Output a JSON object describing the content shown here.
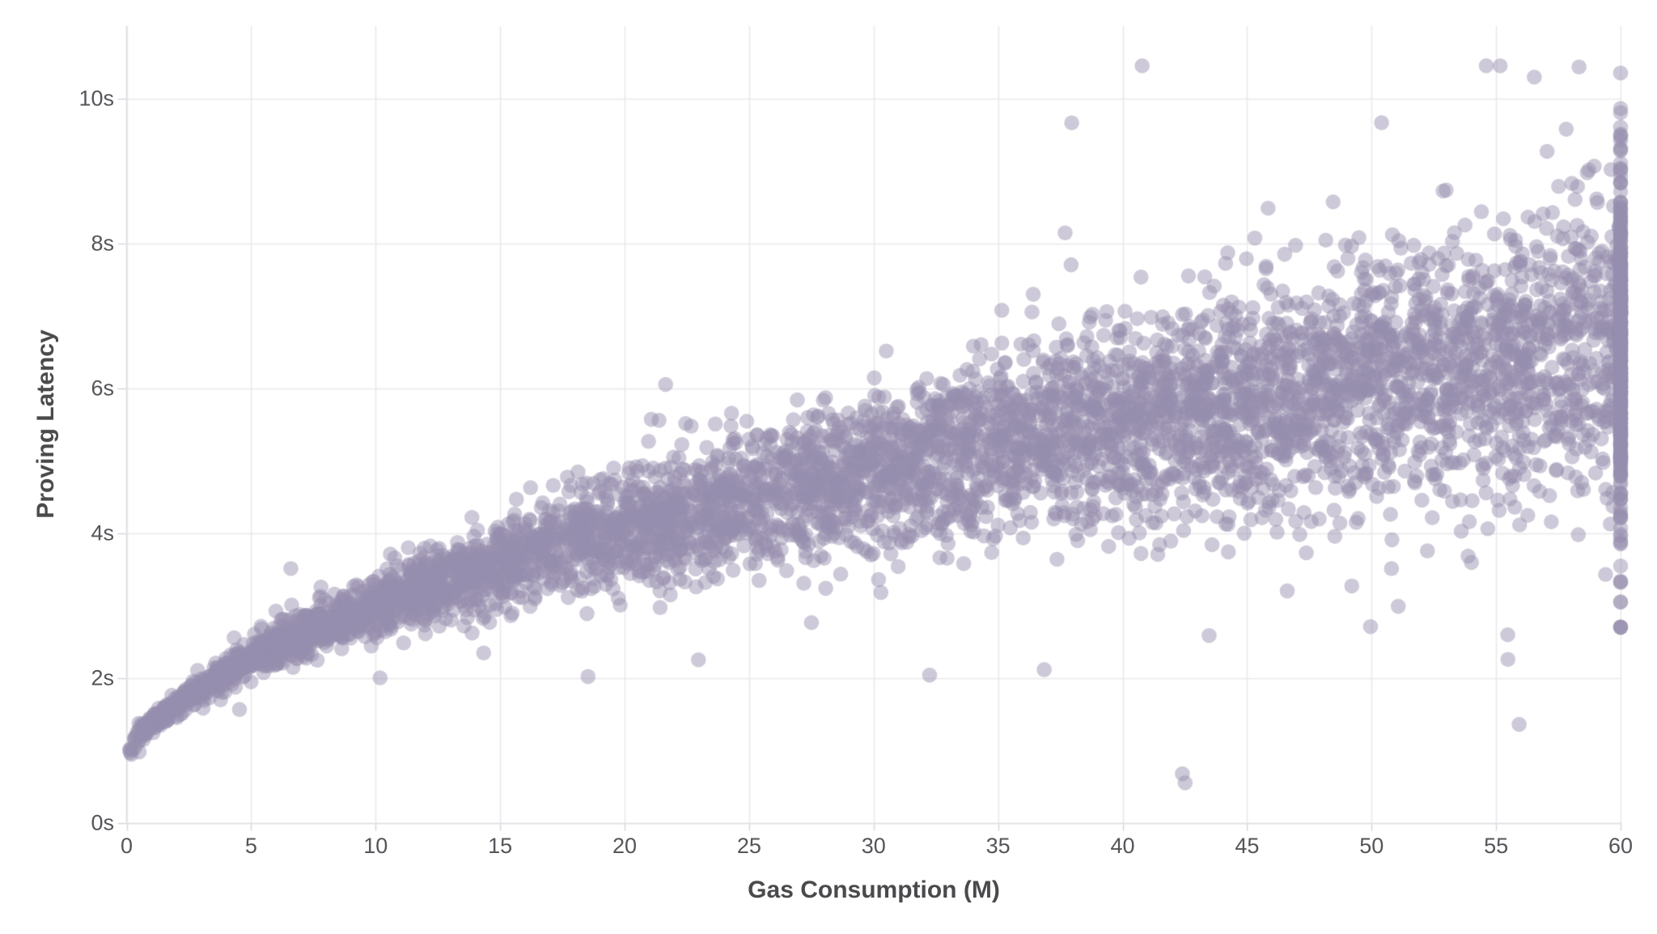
{
  "chart_data": {
    "type": "scatter",
    "title": "",
    "xlabel": "Gas Consumption (M)",
    "ylabel": "Proving Latency",
    "xlim": [
      0,
      60
    ],
    "ylim": [
      0,
      11
    ],
    "grid": true,
    "legend": "none",
    "x_ticks": [
      {
        "value": 0,
        "label": "0"
      },
      {
        "value": 5,
        "label": "5"
      },
      {
        "value": 10,
        "label": "10"
      },
      {
        "value": 15,
        "label": "15"
      },
      {
        "value": 20,
        "label": "20"
      },
      {
        "value": 25,
        "label": "25"
      },
      {
        "value": 30,
        "label": "30"
      },
      {
        "value": 35,
        "label": "35"
      },
      {
        "value": 40,
        "label": "40"
      },
      {
        "value": 45,
        "label": "45"
      },
      {
        "value": 50,
        "label": "50"
      },
      {
        "value": 55,
        "label": "55"
      },
      {
        "value": 60,
        "label": "60"
      }
    ],
    "y_ticks": [
      {
        "value": 0,
        "label": "0s"
      },
      {
        "value": 2,
        "label": "2s"
      },
      {
        "value": 4,
        "label": "4s"
      },
      {
        "value": 6,
        "label": "6s"
      },
      {
        "value": 8,
        "label": "8s"
      },
      {
        "value": 10,
        "label": "10s"
      }
    ],
    "style": {
      "background": "#ffffff",
      "grid_color": "#e9e7ec",
      "axis_color": "#e0dee4",
      "tick_mark_color": "#d8d6dc",
      "tick_label_color": "#55555a",
      "title_color": "#4a4a4d",
      "point_color_rgb": [
        150,
        143,
        173
      ],
      "point_opacity": 0.48,
      "point_radius": 9.3
    },
    "generation": {
      "seed": 1337,
      "n_main": 5600,
      "n_clip_column": 470,
      "n_low_cluster": 6,
      "x_min": 0.3,
      "x_max": 59.95,
      "x_power_bias": 0.9,
      "trend": {
        "base": 0.3,
        "coef": 0.92,
        "power": 0.47,
        "bump_coef": 0.45,
        "bump_scale": 0.9
      },
      "noise": {
        "sigma0": 0.05,
        "sigma_slope": 0.016,
        "outlier_prob": 0.025,
        "outlier_mult": 2.6
      },
      "clip_column": {
        "x": 60,
        "mean": 6.5,
        "sigma": 1.05,
        "outlier_prob": 0.06,
        "outlier_mult": 1.9,
        "y_min": 2.7,
        "y_max": 10.35
      },
      "low_cluster": {
        "x_min": 0.08,
        "x_max": 0.3,
        "y_min": 0.93,
        "y_max": 1.06
      },
      "y_clamp": [
        0.55,
        10.45
      ]
    }
  }
}
